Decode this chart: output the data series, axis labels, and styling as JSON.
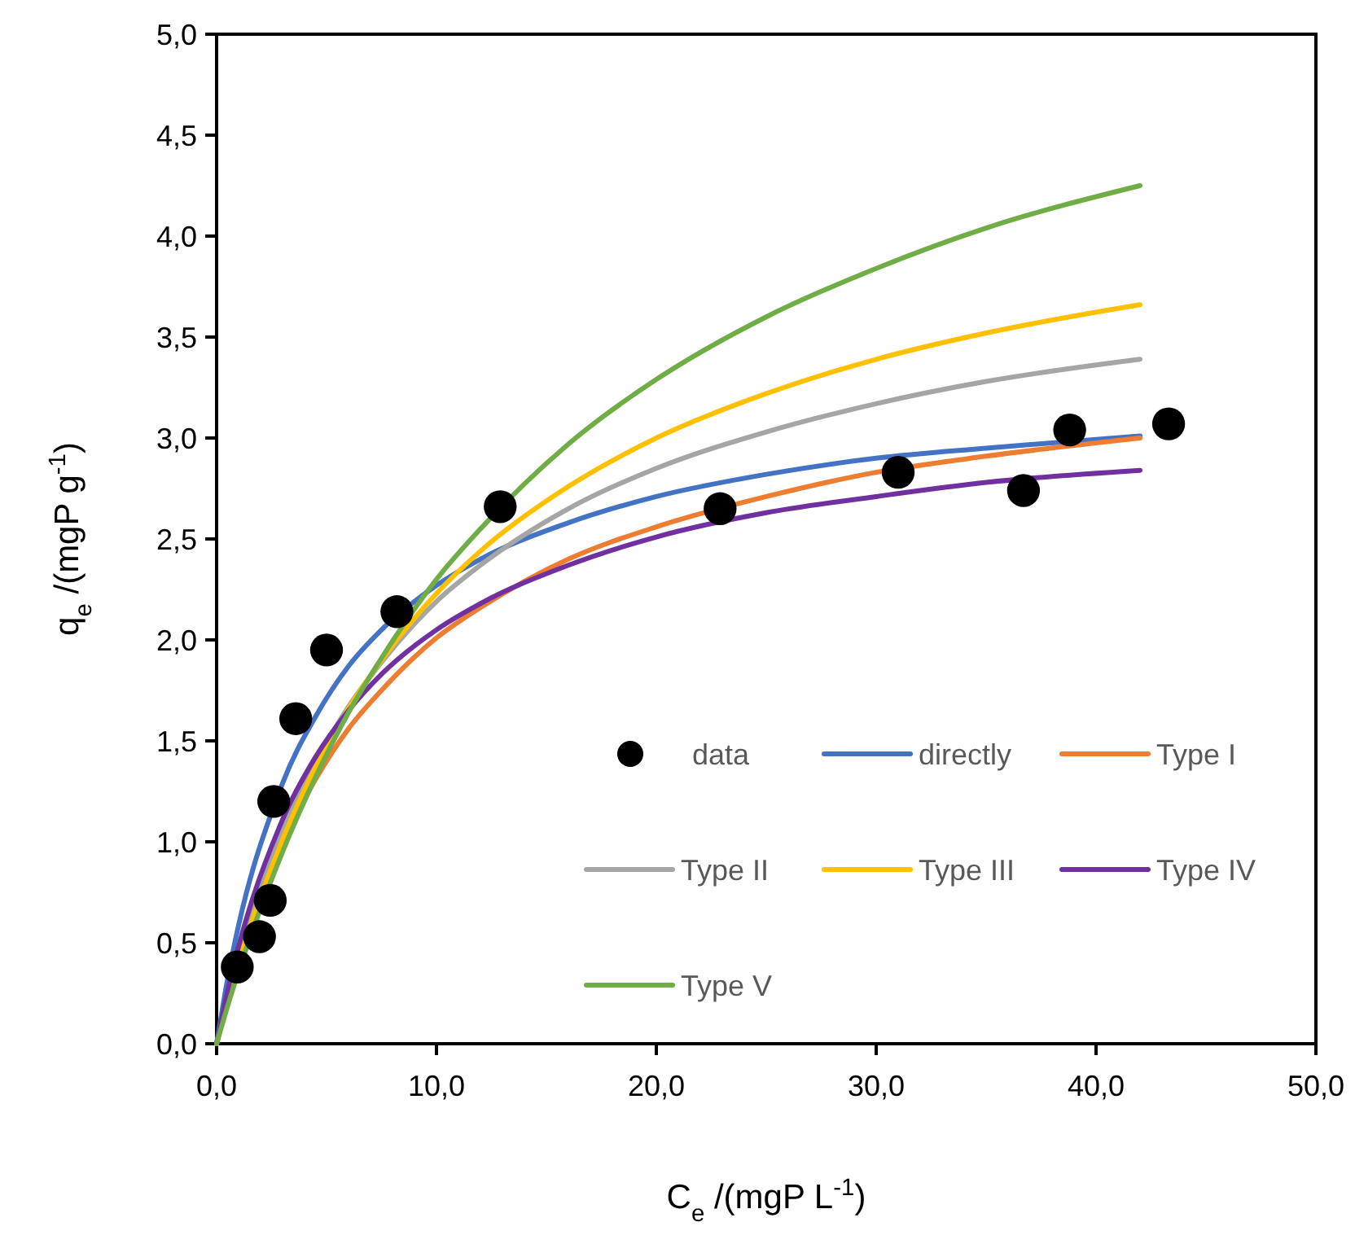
{
  "chart_data": {
    "type": "scatter",
    "xlabel": "C$_{e}$ /(mgP L$^{-1}$)",
    "ylabel": "q$_{e}$ /(mgP g$^{-1}$)",
    "xlim": [
      0,
      50
    ],
    "ylim": [
      0,
      5
    ],
    "xticks": [
      {
        "value": 0,
        "label": "0,0"
      },
      {
        "value": 10,
        "label": "10,0"
      },
      {
        "value": 20,
        "label": "20,0"
      },
      {
        "value": 30,
        "label": "30,0"
      },
      {
        "value": 40,
        "label": "40,0"
      },
      {
        "value": 50,
        "label": "50,0"
      }
    ],
    "yticks": [
      {
        "value": 0,
        "label": "0,0"
      },
      {
        "value": 0.5,
        "label": "0,5"
      },
      {
        "value": 1,
        "label": "1,0"
      },
      {
        "value": 1.5,
        "label": "1,5"
      },
      {
        "value": 2,
        "label": "2,0"
      },
      {
        "value": 2.5,
        "label": "2,5"
      },
      {
        "value": 3,
        "label": "3,0"
      },
      {
        "value": 3.5,
        "label": "3,5"
      },
      {
        "value": 4,
        "label": "4,0"
      },
      {
        "value": 4.5,
        "label": "4,5"
      },
      {
        "value": 5,
        "label": "5,0"
      }
    ],
    "legend": "bottom right",
    "grid": false,
    "series": [
      {
        "name": "data",
        "marker": "circle",
        "color": "#000000",
        "x": [
          0.94,
          1.95,
          2.44,
          2.6,
          3.6,
          5.0,
          8.2,
          12.9,
          22.9,
          31.0,
          36.7,
          38.8,
          43.3
        ],
        "values": [
          0.38,
          0.53,
          0.71,
          1.2,
          1.61,
          1.95,
          2.14,
          2.66,
          2.65,
          2.83,
          2.74,
          3.04,
          3.07
        ]
      },
      {
        "name": "directly",
        "type": "line",
        "marker": "none",
        "color": "#4472c4",
        "x": [
          0,
          0.4,
          3,
          4.5,
          6,
          7.5,
          10,
          12,
          16,
          20,
          25,
          30,
          35,
          42
        ],
        "values": [
          0,
          0.26,
          1.29,
          1.62,
          1.87,
          2.05,
          2.27,
          2.4,
          2.58,
          2.71,
          2.82,
          2.9,
          2.95,
          3.01
        ]
      },
      {
        "name": "Type I",
        "type": "line",
        "marker": "none",
        "color": "#ed7d31",
        "x": [
          0,
          0.4,
          3,
          4.5,
          6,
          7.5,
          10,
          12,
          16,
          20,
          25,
          30,
          35,
          42
        ],
        "values": [
          0,
          0.18,
          1.0,
          1.31,
          1.56,
          1.75,
          2.01,
          2.16,
          2.4,
          2.56,
          2.71,
          2.83,
          2.91,
          3.0
        ]
      },
      {
        "name": "Type II",
        "type": "line",
        "marker": "none",
        "color": "#a5a5a5",
        "x": [
          0,
          0.4,
          3,
          4.5,
          6,
          7.5,
          10,
          12,
          16,
          20,
          25,
          30,
          35,
          42
        ],
        "values": [
          0,
          0.18,
          1.05,
          1.39,
          1.67,
          1.89,
          2.19,
          2.37,
          2.65,
          2.85,
          3.03,
          3.17,
          3.28,
          3.39
        ]
      },
      {
        "name": "Type III",
        "type": "line",
        "marker": "none",
        "color": "#ffc000",
        "x": [
          0,
          0.4,
          3,
          4.5,
          6,
          7.5,
          10,
          12,
          16,
          20,
          25,
          30,
          35,
          42
        ],
        "values": [
          0,
          0.17,
          1.01,
          1.37,
          1.66,
          1.9,
          2.23,
          2.44,
          2.76,
          3.0,
          3.22,
          3.39,
          3.52,
          3.66
        ]
      },
      {
        "name": "Type IV",
        "type": "line",
        "marker": "none",
        "color": "#7030a0",
        "x": [
          0,
          0.4,
          3,
          4.5,
          6,
          7.5,
          10,
          12,
          16,
          20,
          25,
          30,
          35,
          42
        ],
        "values": [
          0,
          0.21,
          1.11,
          1.42,
          1.65,
          1.83,
          2.05,
          2.18,
          2.37,
          2.51,
          2.63,
          2.71,
          2.78,
          2.84
        ]
      },
      {
        "name": "Type V",
        "type": "line",
        "marker": "none",
        "color": "#70ad47",
        "x": [
          0,
          0.4,
          3,
          4.5,
          6,
          7.5,
          10,
          12,
          16,
          20,
          25,
          30,
          35,
          42
        ],
        "values": [
          0,
          0.15,
          0.95,
          1.32,
          1.64,
          1.91,
          2.3,
          2.55,
          2.97,
          3.29,
          3.6,
          3.84,
          4.04,
          4.25
        ]
      }
    ]
  }
}
